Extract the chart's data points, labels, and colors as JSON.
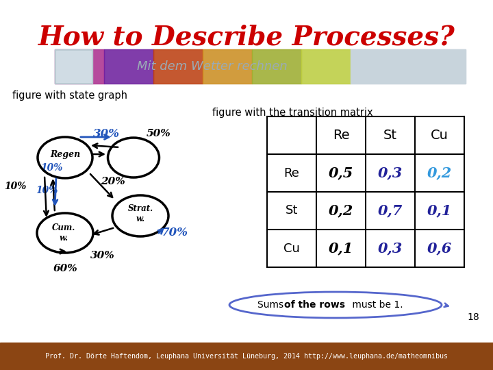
{
  "title": "How to Describe Processes?",
  "title_color": "#cc0000",
  "title_fontsize": 28,
  "banner_text": "Mit dem Wetter rechnen",
  "banner_text_color": "#9aabb5",
  "label_state_graph": "figure with state graph",
  "label_matrix": "figure with the transition matrix",
  "matrix_headers": [
    "",
    "Re",
    "St",
    "Cu"
  ],
  "matrix_rows": [
    [
      "Re",
      "0,5",
      "0,3",
      "0,2"
    ],
    [
      "St",
      "0,2",
      "0,7",
      "0,1"
    ],
    [
      "Cu",
      "0,1",
      "0,3",
      "0,6"
    ]
  ],
  "matrix_col0_color": "black",
  "matrix_col1_color": "black",
  "matrix_col2_color": "#22229a",
  "matrix_col3_color_row0": "#3399dd",
  "matrix_col3_color_row12": "#22229a",
  "footer_text": "Prof. Dr. Dörte Haftendom, Leuphana Universität Lüneburg, 2014 http://www.leuphana.de/matheomnibus",
  "page_number": "18",
  "background_color": "#ffffff",
  "footer_bg": "#8B4513",
  "footer_text_color": "#ffffff",
  "banner_left_colors": [
    "#b03090",
    "#7020a0",
    "#c04010",
    "#d09020",
    "#a0b030",
    "#c0d040"
  ],
  "banner_right_color": "#d0d8e0",
  "sums_ellipse_color": "#5566cc",
  "sums_arrow_color": "#5566cc"
}
